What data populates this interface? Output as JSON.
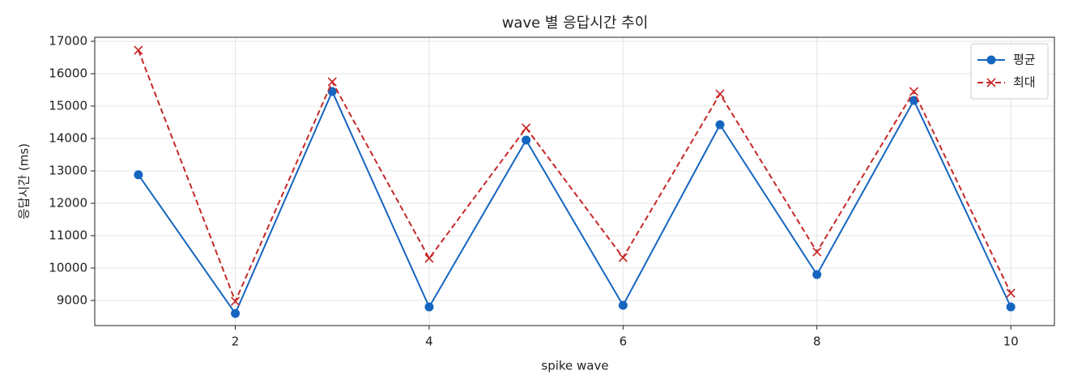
{
  "chart_data": {
    "type": "line",
    "title": "wave 별 응답시간 추이",
    "xlabel": "spike wave",
    "ylabel": "응답시간 (ms)",
    "x": [
      1,
      2,
      3,
      4,
      5,
      6,
      7,
      8,
      9,
      10
    ],
    "series": [
      {
        "name": "평균",
        "color": "#1565c0",
        "marker": "o",
        "dash": false,
        "values": [
          12880,
          8600,
          15450,
          8800,
          13950,
          8850,
          14425,
          9800,
          15175,
          8800
        ]
      },
      {
        "name": "최대",
        "color": "#c62828",
        "marker": "x",
        "dash": true,
        "values": [
          16725,
          8975,
          15750,
          10300,
          14325,
          10325,
          15375,
          10500,
          15450,
          9225
        ]
      }
    ],
    "xlim": [
      0.55,
      10.45
    ],
    "ylim": [
      8225,
      17125
    ],
    "xticks": [
      2,
      4,
      6,
      8,
      10
    ],
    "yticks": [
      9000,
      10000,
      11000,
      12000,
      13000,
      14000,
      15000,
      16000,
      17000
    ],
    "grid": true,
    "legend": "upper right"
  }
}
